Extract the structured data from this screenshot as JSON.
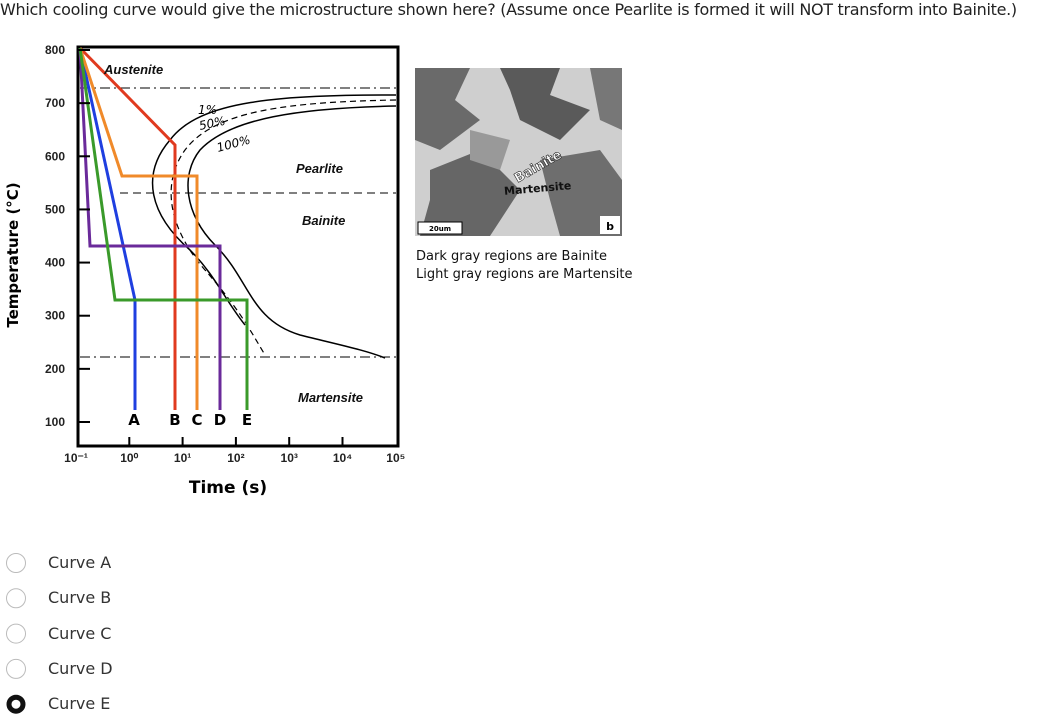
{
  "question": "Which cooling curve would give the microstructure shown here? (Assume once Pearlite is formed it will NOT transform into Bainite.)",
  "figure": {
    "y_axis_label": "Temperature (°C)",
    "x_axis_label": "Time (s)",
    "y_ticks": [
      800,
      700,
      600,
      500,
      400,
      300,
      200,
      100
    ],
    "x_ticks": [
      "10⁻¹",
      "10⁰",
      "10¹",
      "10²",
      "10³",
      "10⁴",
      "10⁵"
    ],
    "regions": {
      "austenite": "Austenite",
      "pearlite": "Pearlite",
      "bainite": "Bainite",
      "martensite": "Martensite"
    },
    "transformation_labels": [
      "1%",
      "50%",
      "100%"
    ],
    "curve_labels": [
      "A",
      "B",
      "C",
      "D",
      "E"
    ],
    "micrograph": {
      "labels": [
        "Bainite",
        "Martensite"
      ],
      "scale_bar": "20um",
      "panel": "b"
    },
    "caption": [
      "Dark gray regions are Bainite",
      "Light gray regions are Martensite"
    ]
  },
  "options": [
    {
      "label": "Curve A",
      "selected": false
    },
    {
      "label": "Curve B",
      "selected": false
    },
    {
      "label": "Curve C",
      "selected": false
    },
    {
      "label": "Curve D",
      "selected": false
    },
    {
      "label": "Curve E",
      "selected": true
    }
  ]
}
